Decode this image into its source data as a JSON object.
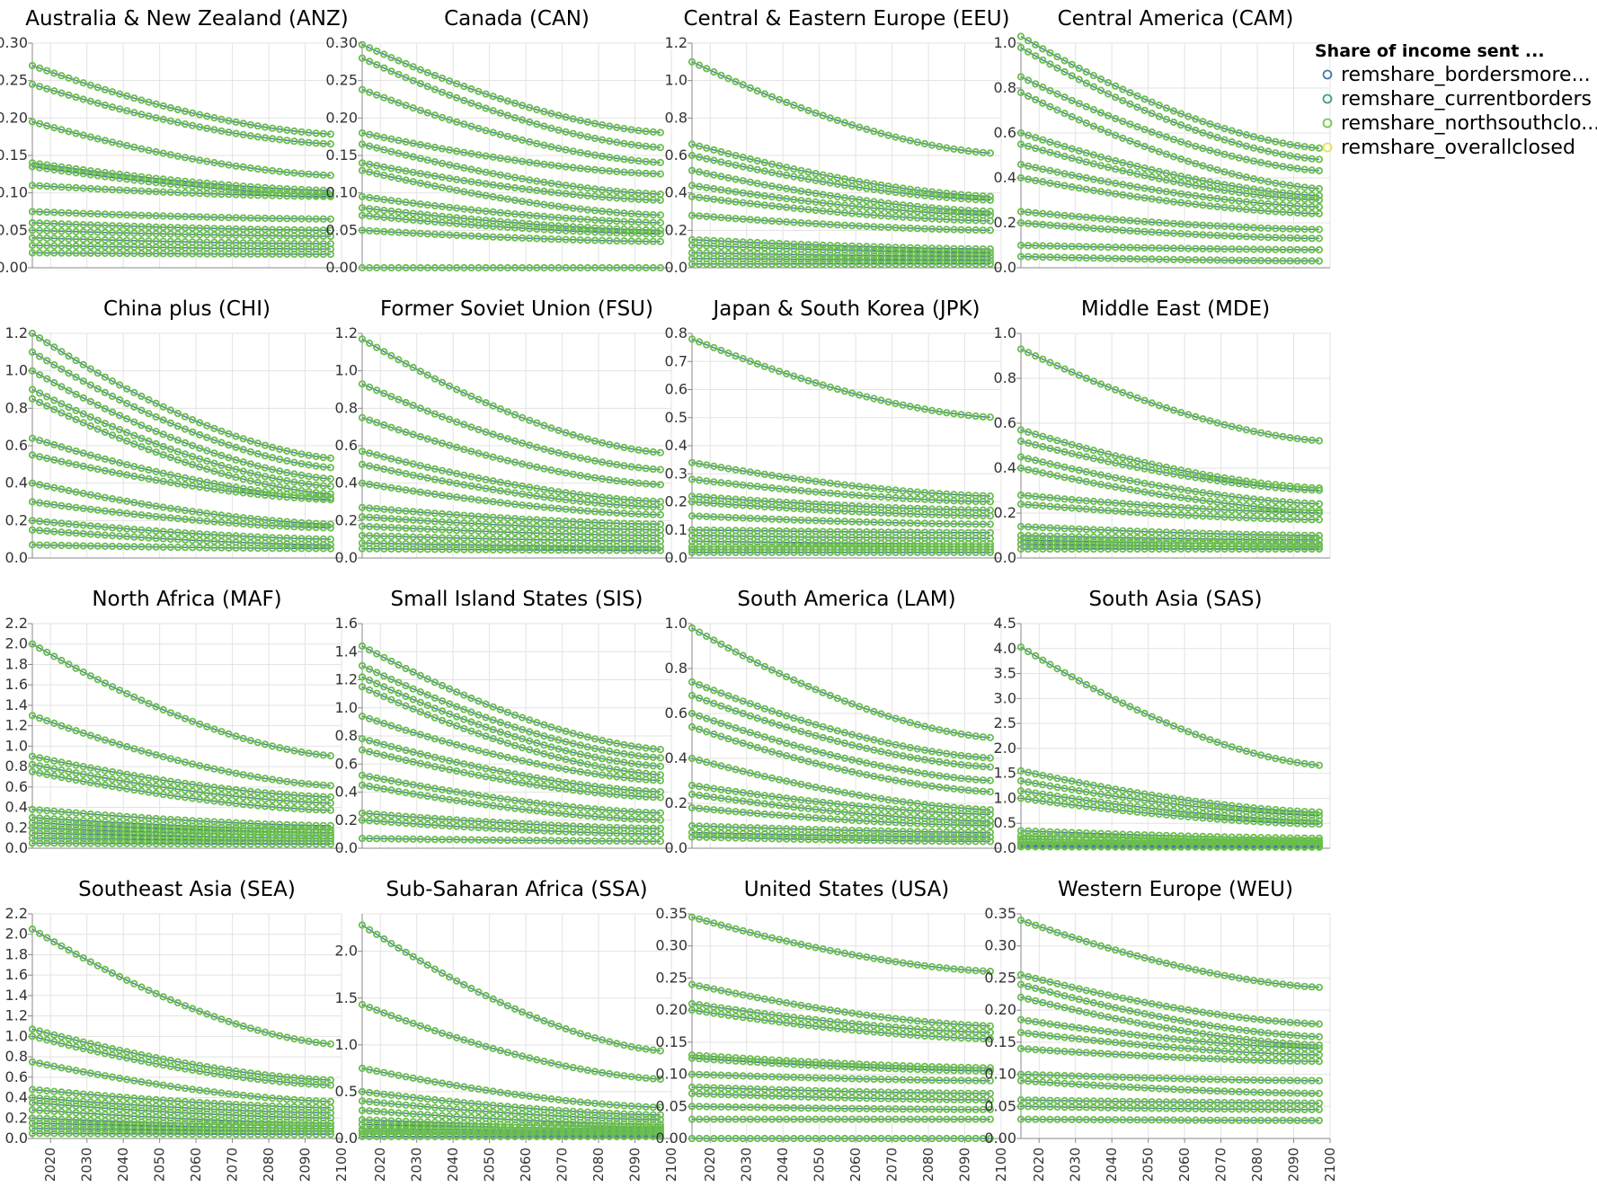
{
  "legend": {
    "title": "Share of income sent ...",
    "items": [
      {
        "label": "remshare_bordersmore...",
        "color": "#4c78a8"
      },
      {
        "label": "remshare_currentborders",
        "color": "#3f9e8f"
      },
      {
        "label": "remshare_northsouthclo...",
        "color": "#7cc35a"
      },
      {
        "label": "remshare_overallclosed",
        "color": "#e5e54a"
      }
    ]
  },
  "chart_data": [
    {
      "title": "Australia & New Zealand (ANZ)",
      "type": "scatter",
      "ylim": [
        0,
        0.3
      ],
      "yticks": [
        "0.00",
        "0.05",
        "0.10",
        "0.15",
        "0.20",
        "0.25",
        "0.30"
      ],
      "series_start": [
        0.27,
        0.245,
        0.195,
        0.14,
        0.135,
        0.11,
        0.075,
        0.06,
        0.05,
        0.04,
        0.03,
        0.02
      ],
      "series_end": [
        0.178,
        0.165,
        0.123,
        0.103,
        0.097,
        0.095,
        0.065,
        0.05,
        0.042,
        0.032,
        0.025,
        0.018
      ]
    },
    {
      "title": "Canada (CAN)",
      "type": "scatter",
      "ylim": [
        0,
        0.3
      ],
      "yticks": [
        "0.00",
        "0.05",
        "0.10",
        "0.15",
        "0.20",
        "0.25",
        "0.30"
      ],
      "series_start": [
        0.298,
        0.28,
        0.238,
        0.18,
        0.165,
        0.14,
        0.13,
        0.095,
        0.08,
        0.07,
        0.05,
        0.0
      ],
      "series_end": [
        0.18,
        0.16,
        0.14,
        0.125,
        0.098,
        0.09,
        0.07,
        0.06,
        0.05,
        0.045,
        0.035,
        0.0
      ]
    },
    {
      "title": "Central & Eastern Europe (EEU)",
      "type": "scatter",
      "ylim": [
        0,
        1.2
      ],
      "yticks": [
        "0.0",
        "0.2",
        "0.4",
        "0.6",
        "0.8",
        "1.0",
        "1.2"
      ],
      "series_start": [
        1.1,
        0.66,
        0.6,
        0.52,
        0.44,
        0.38,
        0.28,
        0.15,
        0.12,
        0.08,
        0.05,
        0.02
      ],
      "series_end": [
        0.61,
        0.38,
        0.36,
        0.3,
        0.28,
        0.25,
        0.2,
        0.1,
        0.08,
        0.06,
        0.04,
        0.02
      ]
    },
    {
      "title": "Central America (CAM)",
      "type": "scatter",
      "ylim": [
        0,
        1.0
      ],
      "yticks": [
        "0.0",
        "0.2",
        "0.4",
        "0.6",
        "0.8",
        "1.0"
      ],
      "series_start": [
        1.03,
        0.98,
        0.85,
        0.78,
        0.6,
        0.55,
        0.46,
        0.4,
        0.25,
        0.2,
        0.1,
        0.05
      ],
      "series_end": [
        0.53,
        0.48,
        0.43,
        0.35,
        0.32,
        0.3,
        0.27,
        0.24,
        0.17,
        0.13,
        0.08,
        0.03
      ]
    },
    {
      "title": "China plus (CHI)",
      "type": "scatter",
      "ylim": [
        0,
        1.2
      ],
      "yticks": [
        "0.0",
        "0.2",
        "0.4",
        "0.6",
        "0.8",
        "1.0",
        "1.2"
      ],
      "series_start": [
        1.2,
        1.1,
        1.0,
        0.9,
        0.85,
        0.64,
        0.55,
        0.4,
        0.3,
        0.2,
        0.15,
        0.07
      ],
      "series_end": [
        0.53,
        0.48,
        0.42,
        0.38,
        0.34,
        0.32,
        0.31,
        0.18,
        0.16,
        0.1,
        0.07,
        0.05
      ]
    },
    {
      "title": "Former Soviet Union (FSU)",
      "type": "scatter",
      "ylim": [
        0,
        1.2
      ],
      "yticks": [
        "0.0",
        "0.2",
        "0.4",
        "0.6",
        "0.8",
        "1.0",
        "1.2"
      ],
      "series_start": [
        1.17,
        0.93,
        0.75,
        0.57,
        0.5,
        0.4,
        0.27,
        0.22,
        0.17,
        0.12,
        0.08,
        0.05
      ],
      "series_end": [
        0.56,
        0.47,
        0.39,
        0.3,
        0.27,
        0.23,
        0.18,
        0.15,
        0.12,
        0.09,
        0.06,
        0.04
      ]
    },
    {
      "title": "Japan & South Korea (JPK)",
      "type": "scatter",
      "ylim": [
        0,
        0.8
      ],
      "yticks": [
        "0.0",
        "0.1",
        "0.2",
        "0.3",
        "0.4",
        "0.5",
        "0.6",
        "0.7",
        "0.8"
      ],
      "series_start": [
        0.78,
        0.34,
        0.28,
        0.22,
        0.2,
        0.15,
        0.1,
        0.08,
        0.06,
        0.04,
        0.03,
        0.02
      ],
      "series_end": [
        0.5,
        0.22,
        0.2,
        0.17,
        0.15,
        0.12,
        0.09,
        0.07,
        0.05,
        0.04,
        0.03,
        0.02
      ]
    },
    {
      "title": "Middle East (MDE)",
      "type": "scatter",
      "ylim": [
        0,
        1.0
      ],
      "yticks": [
        "0.0",
        "0.2",
        "0.4",
        "0.6",
        "0.8",
        "1.0"
      ],
      "series_start": [
        0.93,
        0.57,
        0.52,
        0.45,
        0.4,
        0.28,
        0.24,
        0.14,
        0.1,
        0.08,
        0.06,
        0.04
      ],
      "series_end": [
        0.52,
        0.31,
        0.3,
        0.24,
        0.21,
        0.2,
        0.17,
        0.1,
        0.08,
        0.06,
        0.05,
        0.04
      ]
    },
    {
      "title": "North Africa (MAF)",
      "type": "scatter",
      "ylim": [
        0,
        2.2
      ],
      "yticks": [
        "0.0",
        "0.2",
        "0.4",
        "0.6",
        "0.8",
        "1.0",
        "1.2",
        "1.4",
        "1.6",
        "1.8",
        "2.0",
        "2.2"
      ],
      "series_start": [
        2.0,
        1.3,
        0.9,
        0.82,
        0.75,
        0.38,
        0.3,
        0.25,
        0.2,
        0.15,
        0.1,
        0.05
      ],
      "series_end": [
        0.9,
        0.61,
        0.5,
        0.44,
        0.37,
        0.22,
        0.18,
        0.15,
        0.12,
        0.1,
        0.07,
        0.04
      ]
    },
    {
      "title": "Small Island States (SIS)",
      "type": "scatter",
      "ylim": [
        0,
        1.6
      ],
      "yticks": [
        "0.0",
        "0.2",
        "0.4",
        "0.6",
        "0.8",
        "1.0",
        "1.2",
        "1.4",
        "1.6"
      ],
      "series_start": [
        1.44,
        1.3,
        1.22,
        1.15,
        0.94,
        0.78,
        0.7,
        0.52,
        0.45,
        0.25,
        0.2,
        0.07
      ],
      "series_end": [
        0.7,
        0.64,
        0.58,
        0.52,
        0.48,
        0.4,
        0.36,
        0.25,
        0.2,
        0.14,
        0.1,
        0.05
      ]
    },
    {
      "title": "South America (LAM)",
      "type": "scatter",
      "ylim": [
        0,
        1.0
      ],
      "yticks": [
        "0.0",
        "0.2",
        "0.4",
        "0.6",
        "0.8",
        "1.0"
      ],
      "series_start": [
        0.98,
        0.74,
        0.68,
        0.6,
        0.54,
        0.4,
        0.28,
        0.24,
        0.18,
        0.1,
        0.07,
        0.05
      ],
      "series_end": [
        0.49,
        0.4,
        0.36,
        0.3,
        0.25,
        0.17,
        0.15,
        0.12,
        0.1,
        0.07,
        0.05,
        0.03
      ]
    },
    {
      "title": "South Asia (SAS)",
      "type": "scatter",
      "ylim": [
        0,
        4.5
      ],
      "yticks": [
        "0.0",
        "0.5",
        "1.0",
        "1.5",
        "2.0",
        "2.5",
        "3.0",
        "3.5",
        "4.0",
        "4.5"
      ],
      "series_start": [
        4.03,
        1.55,
        1.35,
        1.15,
        1.0,
        0.35,
        0.25,
        0.18,
        0.12,
        0.08,
        0.05,
        0.03
      ],
      "series_end": [
        1.65,
        0.72,
        0.65,
        0.55,
        0.48,
        0.2,
        0.15,
        0.12,
        0.09,
        0.06,
        0.04,
        0.02
      ]
    },
    {
      "title": "Southeast Asia (SEA)",
      "type": "scatter",
      "ylim": [
        0,
        2.2
      ],
      "yticks": [
        "0.0",
        "0.2",
        "0.4",
        "0.6",
        "0.8",
        "1.0",
        "1.2",
        "1.4",
        "1.6",
        "1.8",
        "2.0",
        "2.2"
      ],
      "series_start": [
        2.05,
        1.07,
        1.0,
        0.75,
        0.48,
        0.4,
        0.35,
        0.28,
        0.2,
        0.15,
        0.1,
        0.05
      ],
      "series_end": [
        0.92,
        0.57,
        0.52,
        0.36,
        0.3,
        0.25,
        0.2,
        0.15,
        0.12,
        0.1,
        0.07,
        0.04
      ]
    },
    {
      "title": "Sub-Saharan Africa (SSA)",
      "type": "scatter",
      "ylim": [
        0,
        2.4
      ],
      "yticks": [
        "0.0",
        "0.5",
        "1.0",
        "1.5",
        "2.0"
      ],
      "series_start": [
        2.28,
        1.43,
        0.75,
        0.5,
        0.4,
        0.3,
        0.2,
        0.15,
        0.1,
        0.08,
        0.05,
        0.02
      ],
      "series_end": [
        0.93,
        0.63,
        0.33,
        0.25,
        0.2,
        0.15,
        0.12,
        0.1,
        0.08,
        0.06,
        0.04,
        0.02
      ]
    },
    {
      "title": "United States (USA)",
      "type": "scatter",
      "ylim": [
        0,
        0.35
      ],
      "yticks": [
        "0.00",
        "0.05",
        "0.10",
        "0.15",
        "0.20",
        "0.25",
        "0.30",
        "0.35"
      ],
      "series_start": [
        0.345,
        0.24,
        0.21,
        0.2,
        0.13,
        0.125,
        0.1,
        0.08,
        0.07,
        0.05,
        0.03,
        0.0
      ],
      "series_end": [
        0.26,
        0.175,
        0.165,
        0.155,
        0.11,
        0.105,
        0.09,
        0.07,
        0.06,
        0.045,
        0.03,
        0.0
      ]
    },
    {
      "title": "Western Europe (WEU)",
      "type": "scatter",
      "ylim": [
        0,
        0.35
      ],
      "yticks": [
        "0.00",
        "0.05",
        "0.10",
        "0.15",
        "0.20",
        "0.25",
        "0.30",
        "0.35"
      ],
      "series_start": [
        0.34,
        0.255,
        0.24,
        0.22,
        0.185,
        0.165,
        0.14,
        0.1,
        0.09,
        0.06,
        0.05,
        0.03
      ],
      "series_end": [
        0.235,
        0.178,
        0.158,
        0.145,
        0.14,
        0.13,
        0.12,
        0.09,
        0.07,
        0.055,
        0.045,
        0.028
      ]
    }
  ],
  "x_ticks": [
    "2020",
    "2030",
    "2040",
    "2050",
    "2060",
    "2070",
    "2080",
    "2090",
    "2100"
  ],
  "x_range": [
    2015,
    2100
  ],
  "colors": {
    "point": "#6abf4b",
    "pointDark": "#4a9a3a",
    "blue": "#4c78a8",
    "grid": "#e3e3e3",
    "axis": "#888888"
  }
}
